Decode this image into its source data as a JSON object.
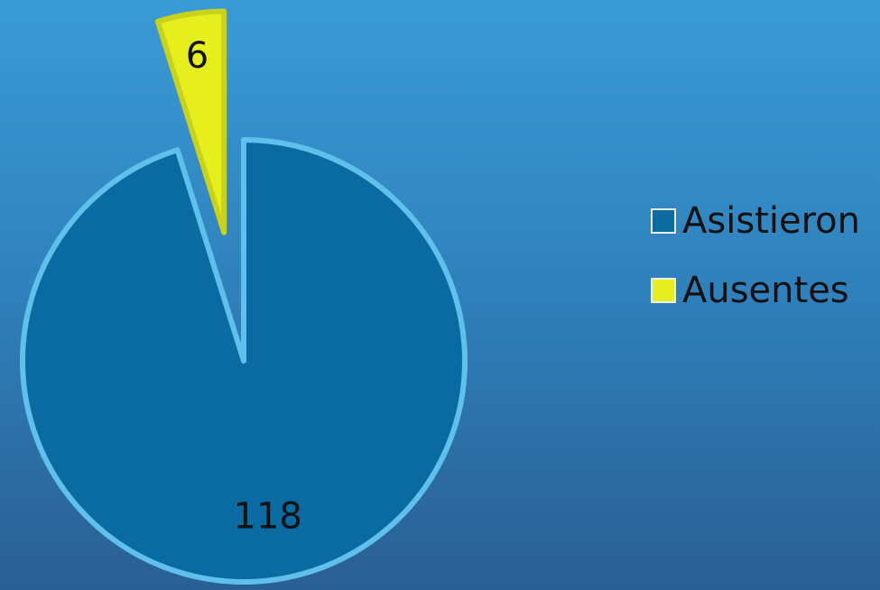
{
  "chart_data": {
    "type": "pie",
    "categories": [
      "Asistieron",
      "Ausentes"
    ],
    "values": [
      118,
      6
    ],
    "colors": [
      "#0a6aa2",
      "#e6ee1e"
    ],
    "legend": "right"
  }
}
